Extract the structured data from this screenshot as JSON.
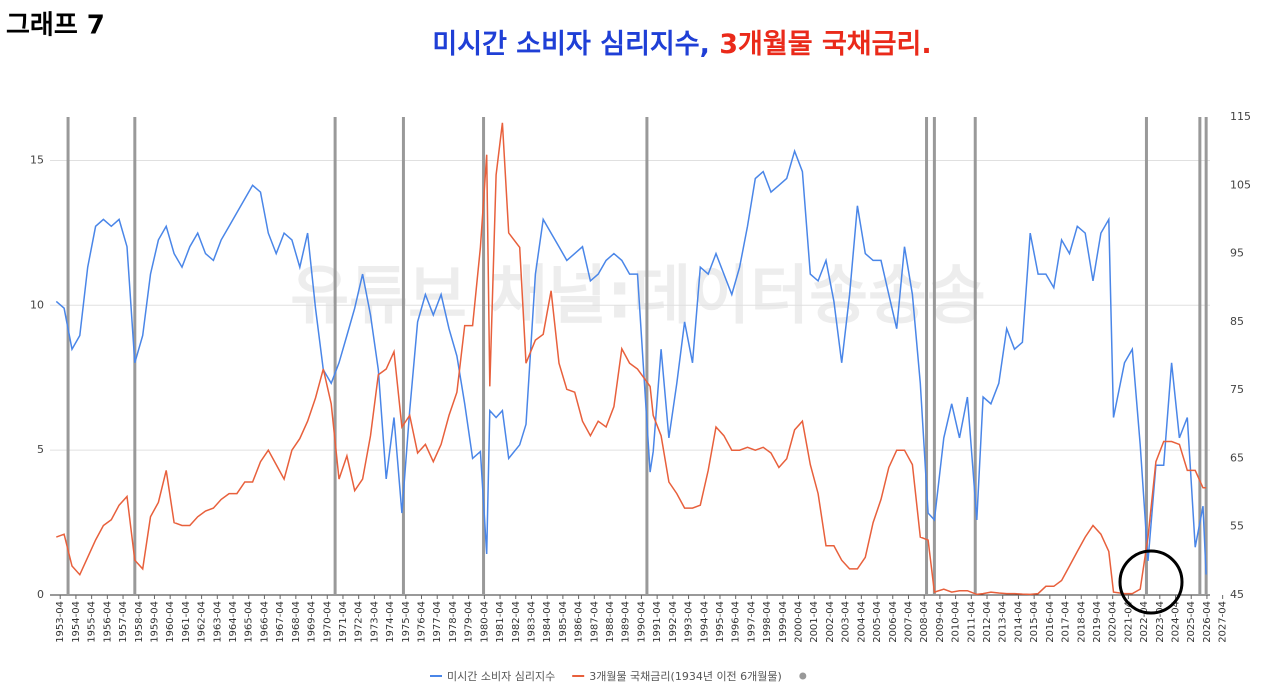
{
  "label": "그래프 7",
  "chart_data": {
    "type": "line",
    "title": [
      {
        "text": "미시간 소비자 심리지수,",
        "color": "#1f3fd6"
      },
      {
        "text": "3개월물 국채금리.",
        "color": "#ea2a1a"
      }
    ],
    "watermark": "유튜브 채널:데이터송송송",
    "xlim": [
      1952.6,
      2027.4
    ],
    "ylim": [
      0,
      16.5
    ],
    "yticks": [
      0,
      5,
      10,
      15
    ],
    "y2lim": [
      45,
      115
    ],
    "y2ticks": [
      45,
      55,
      65,
      75,
      85,
      95,
      105,
      115
    ],
    "grid": true,
    "vertical_lines": [
      1953.75,
      1958.0,
      1970.75,
      1975.1,
      1980.2,
      1990.6,
      2008.4,
      2008.9,
      2011.5,
      2022.4,
      2025.8,
      2026.2
    ],
    "xticks": [
      {
        "value": 1953.25,
        "label": "1953-04"
      },
      {
        "value": 1954.25,
        "label": "1954-04"
      },
      {
        "value": 1955.25,
        "label": "1955-04"
      },
      {
        "value": 1956.25,
        "label": "1956-04"
      },
      {
        "value": 1957.25,
        "label": "1957-04"
      },
      {
        "value": 1958.25,
        "label": "1958-04"
      },
      {
        "value": 1959.25,
        "label": "1959-04"
      },
      {
        "value": 1960.25,
        "label": "1960-04"
      },
      {
        "value": 1961.25,
        "label": "1961-04"
      },
      {
        "value": 1962.25,
        "label": "1962-04"
      },
      {
        "value": 1963.25,
        "label": "1963-04"
      },
      {
        "value": 1964.25,
        "label": "1964-04"
      },
      {
        "value": 1965.25,
        "label": "1965-04"
      },
      {
        "value": 1966.25,
        "label": "1966-04"
      },
      {
        "value": 1967.25,
        "label": "1967-04"
      },
      {
        "value": 1968.25,
        "label": "1968-04"
      },
      {
        "value": 1969.25,
        "label": "1969-04"
      },
      {
        "value": 1970.25,
        "label": "1970-04"
      },
      {
        "value": 1971.25,
        "label": "1971-04"
      },
      {
        "value": 1972.25,
        "label": "1972-04"
      },
      {
        "value": 1973.25,
        "label": "1973-04"
      },
      {
        "value": 1974.25,
        "label": "1974-04"
      },
      {
        "value": 1975.25,
        "label": "1975-04"
      },
      {
        "value": 1976.25,
        "label": "1976-04"
      },
      {
        "value": 1977.25,
        "label": "1977-04"
      },
      {
        "value": 1978.25,
        "label": "1978-04"
      },
      {
        "value": 1979.25,
        "label": "1979-04"
      },
      {
        "value": 1980.25,
        "label": "1980-04"
      },
      {
        "value": 1981.25,
        "label": "1981-04"
      },
      {
        "value": 1982.25,
        "label": "1982-04"
      },
      {
        "value": 1983.25,
        "label": "1983-04"
      },
      {
        "value": 1984.25,
        "label": "1984-04"
      },
      {
        "value": 1985.25,
        "label": "1985-04"
      },
      {
        "value": 1986.25,
        "label": "1986-04"
      },
      {
        "value": 1987.25,
        "label": "1987-04"
      },
      {
        "value": 1988.25,
        "label": "1988-04"
      },
      {
        "value": 1989.25,
        "label": "1989-04"
      },
      {
        "value": 1990.25,
        "label": "1990-04"
      },
      {
        "value": 1991.25,
        "label": "1991-04"
      },
      {
        "value": 1992.25,
        "label": "1992-04"
      },
      {
        "value": 1993.25,
        "label": "1993-04"
      },
      {
        "value": 1994.25,
        "label": "1994-04"
      },
      {
        "value": 1995.25,
        "label": "1995-04"
      },
      {
        "value": 1996.25,
        "label": "1996-04"
      },
      {
        "value": 1997.25,
        "label": "1997-04"
      },
      {
        "value": 1998.25,
        "label": "1998-04"
      },
      {
        "value": 1999.25,
        "label": "1999-04"
      },
      {
        "value": 2000.25,
        "label": "2000-04"
      },
      {
        "value": 2001.25,
        "label": "2001-04"
      },
      {
        "value": 2002.25,
        "label": "2002-04"
      },
      {
        "value": 2003.25,
        "label": "2003-04"
      },
      {
        "value": 2004.25,
        "label": "2004-04"
      },
      {
        "value": 2005.25,
        "label": "2005-04"
      },
      {
        "value": 2006.25,
        "label": "2006-04"
      },
      {
        "value": 2007.25,
        "label": "2007-04"
      },
      {
        "value": 2008.25,
        "label": "2008-04"
      },
      {
        "value": 2009.25,
        "label": "2009-04"
      },
      {
        "value": 2010.25,
        "label": "2010-04"
      },
      {
        "value": 2011.25,
        "label": "2011-04"
      },
      {
        "value": 2012.25,
        "label": "2012-04"
      },
      {
        "value": 2013.25,
        "label": "2013-04"
      },
      {
        "value": 2014.25,
        "label": "2014-04"
      },
      {
        "value": 2015.25,
        "label": "2015-04"
      },
      {
        "value": 2016.25,
        "label": "2016-04"
      },
      {
        "value": 2017.25,
        "label": "2017-04"
      },
      {
        "value": 2018.25,
        "label": "2018-04"
      },
      {
        "value": 2019.25,
        "label": "2019-04"
      },
      {
        "value": 2020.25,
        "label": "2020-04"
      },
      {
        "value": 2021.25,
        "label": "2021-04"
      },
      {
        "value": 2022.25,
        "label": "2022-04"
      },
      {
        "value": 2023.25,
        "label": "2023-04"
      },
      {
        "value": 2024.25,
        "label": "2024-04"
      },
      {
        "value": 2025.25,
        "label": "2025-04"
      },
      {
        "value": 2026.25,
        "label": "2026-04"
      },
      {
        "value": 2027.25,
        "label": "2027-04"
      }
    ],
    "x": [
      1953.0,
      1953.5,
      1954.0,
      1954.5,
      1955.0,
      1955.5,
      1956.0,
      1956.5,
      1957.0,
      1957.5,
      1958.0,
      1958.5,
      1959.0,
      1959.5,
      1960.0,
      1960.5,
      1961.0,
      1961.5,
      1962.0,
      1962.5,
      1963.0,
      1963.5,
      1964.0,
      1964.5,
      1965.0,
      1965.5,
      1966.0,
      1966.5,
      1967.0,
      1967.5,
      1968.0,
      1968.5,
      1969.0,
      1969.5,
      1970.0,
      1970.5,
      1971.0,
      1971.5,
      1972.0,
      1972.5,
      1973.0,
      1973.5,
      1974.0,
      1974.5,
      1975.0,
      1975.5,
      1976.0,
      1976.5,
      1977.0,
      1977.5,
      1978.0,
      1978.5,
      1979.0,
      1979.5,
      1980.0,
      1980.4,
      1980.6,
      1981.0,
      1981.4,
      1981.8,
      1982.5,
      1982.9,
      1983.5,
      1984.0,
      1984.5,
      1985.0,
      1985.5,
      1986.0,
      1986.5,
      1987.0,
      1987.5,
      1988.0,
      1988.5,
      1989.0,
      1989.5,
      1990.0,
      1990.8,
      1991.0,
      1991.5,
      1992.0,
      1992.5,
      1993.0,
      1993.5,
      1994.0,
      1994.5,
      1995.0,
      1995.5,
      1996.0,
      1996.5,
      1997.0,
      1997.5,
      1998.0,
      1998.5,
      1999.0,
      1999.5,
      2000.0,
      2000.5,
      2001.0,
      2001.5,
      2002.0,
      2002.5,
      2003.0,
      2003.5,
      2004.0,
      2004.5,
      2005.0,
      2005.5,
      2006.0,
      2006.5,
      2007.0,
      2007.5,
      2008.0,
      2008.5,
      2008.9,
      2009.5,
      2010.0,
      2010.5,
      2011.0,
      2011.6,
      2012.0,
      2012.5,
      2013.0,
      2013.5,
      2014.0,
      2014.5,
      2015.0,
      2015.5,
      2016.0,
      2016.5,
      2017.0,
      2017.5,
      2018.0,
      2018.5,
      2019.0,
      2019.5,
      2020.0,
      2020.3,
      2021.0,
      2021.5,
      2022.0,
      2022.5,
      2023.0,
      2023.5,
      2024.0,
      2024.5,
      2025.0,
      2025.5,
      2026.0,
      2026.2
    ],
    "series": [
      {
        "name": "미시간 소비자 심리지수",
        "color": "#4a86e8",
        "axis": "y2",
        "values": [
          88,
          87,
          81,
          83,
          93,
          99,
          100,
          99,
          100,
          96,
          79,
          83,
          92,
          97,
          99,
          95,
          93,
          96,
          98,
          95,
          94,
          97,
          99,
          101,
          103,
          105,
          104,
          98,
          95,
          98,
          97,
          93,
          98,
          87,
          78,
          76,
          79,
          83,
          87,
          92,
          86,
          78,
          62,
          71,
          57,
          72,
          85,
          89,
          86,
          89,
          84,
          80,
          73,
          65,
          66,
          51,
          72,
          71,
          72,
          65,
          67,
          70,
          92,
          100,
          98,
          96,
          94,
          95,
          96,
          91,
          92,
          94,
          95,
          94,
          92,
          92,
          63,
          66,
          81,
          68,
          76,
          85,
          79,
          93,
          92,
          95,
          92,
          89,
          93,
          99,
          106,
          107,
          104,
          105,
          106,
          110,
          107,
          92,
          91,
          94,
          88,
          79,
          89,
          102,
          95,
          94,
          94,
          89,
          84,
          96,
          89,
          76,
          57,
          56,
          68,
          73,
          68,
          74,
          56,
          74,
          73,
          76,
          84,
          81,
          82,
          98,
          92,
          92,
          90,
          97,
          95,
          99,
          98,
          91,
          98,
          100,
          71,
          79,
          81,
          67,
          50,
          64,
          64,
          79,
          68,
          71,
          52,
          58,
          48
        ]
      },
      {
        "name": "3개월물 국채금리(1934년 이전 6개월물)",
        "color": "#e8603c",
        "axis": "y",
        "values": [
          2.0,
          2.1,
          1.0,
          0.7,
          1.3,
          1.9,
          2.4,
          2.6,
          3.1,
          3.4,
          1.2,
          0.9,
          2.7,
          3.2,
          4.3,
          2.5,
          2.4,
          2.4,
          2.7,
          2.9,
          3.0,
          3.3,
          3.5,
          3.5,
          3.9,
          3.9,
          4.6,
          5.0,
          4.5,
          4.0,
          5.0,
          5.4,
          6.0,
          6.8,
          7.8,
          6.6,
          4.0,
          4.8,
          3.6,
          4.0,
          5.5,
          7.6,
          7.8,
          8.4,
          5.8,
          6.2,
          4.9,
          5.2,
          4.6,
          5.2,
          6.2,
          7.0,
          9.3,
          9.3,
          12.0,
          15.2,
          7.2,
          14.5,
          16.3,
          12.5,
          12.0,
          8.0,
          8.8,
          9.0,
          10.5,
          8.0,
          7.1,
          7.0,
          6.0,
          5.5,
          6.0,
          5.8,
          6.5,
          8.5,
          8.0,
          7.8,
          7.2,
          6.2,
          5.5,
          3.9,
          3.5,
          3.0,
          3.0,
          3.1,
          4.3,
          5.8,
          5.5,
          5.0,
          5.0,
          5.1,
          5.0,
          5.1,
          4.9,
          4.4,
          4.7,
          5.7,
          6.0,
          4.5,
          3.5,
          1.7,
          1.7,
          1.2,
          0.9,
          0.9,
          1.3,
          2.5,
          3.3,
          4.4,
          5.0,
          5.0,
          4.5,
          2.0,
          1.9,
          0.1,
          0.2,
          0.1,
          0.15,
          0.15,
          0.02,
          0.05,
          0.1,
          0.07,
          0.05,
          0.05,
          0.03,
          0.02,
          0.05,
          0.3,
          0.3,
          0.5,
          1.0,
          1.5,
          2.0,
          2.4,
          2.1,
          1.5,
          0.1,
          0.05,
          0.05,
          0.2,
          2.0,
          4.6,
          5.3,
          5.3,
          5.2,
          4.3,
          4.3,
          3.7,
          3.7
        ]
      }
    ]
  }
}
